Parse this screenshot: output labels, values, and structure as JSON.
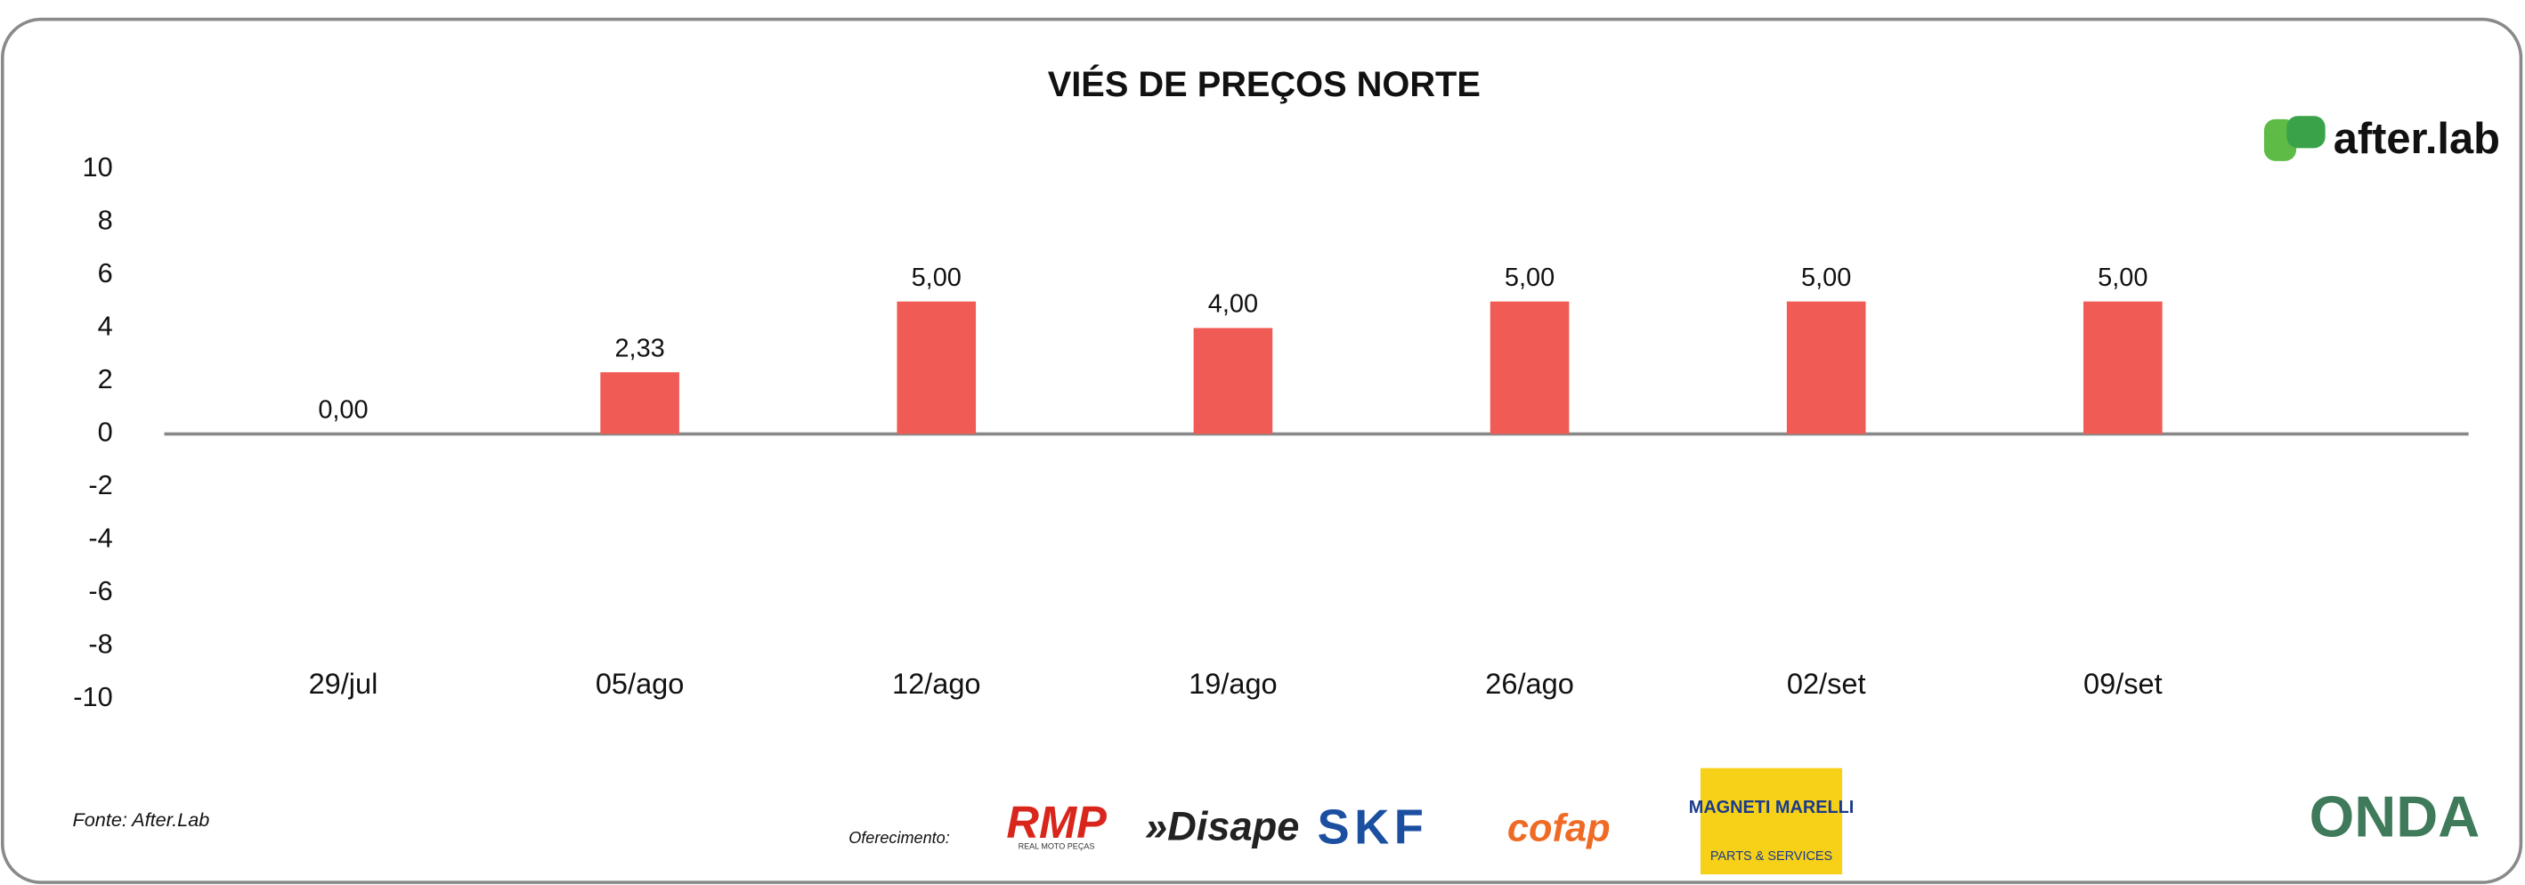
{
  "chart_data": {
    "type": "bar",
    "title": "VIÉS DE PREÇOS NORTE",
    "categories": [
      "29/jul",
      "05/ago",
      "12/ago",
      "19/ago",
      "26/ago",
      "02/set",
      "09/set"
    ],
    "values": [
      0,
      2.33,
      5,
      4,
      5,
      5,
      5
    ],
    "value_labels": [
      "0,00",
      "2,33",
      "5,00",
      "4,00",
      "5,00",
      "5,00",
      "5,00"
    ],
    "color": "#f15b55",
    "ylim": [
      -10,
      10
    ],
    "yticks": [
      10,
      8,
      6,
      4,
      2,
      0,
      -2,
      -4,
      -6,
      -8,
      -10
    ],
    "grid": false
  },
  "brand": "after.lab",
  "source": "Fonte: After.Lab",
  "sponsor_label": "Oferecimento:",
  "sponsors": {
    "rmp": "RMP",
    "rmp_sub": "REAL MOTO PEÇAS",
    "disape": "»Disape",
    "skf": "SKF",
    "cofap": "cofap",
    "magneti": "MAGNETI MARELLI",
    "magneti_sub": "PARTS & SERVICES"
  },
  "onda": "ONDA"
}
